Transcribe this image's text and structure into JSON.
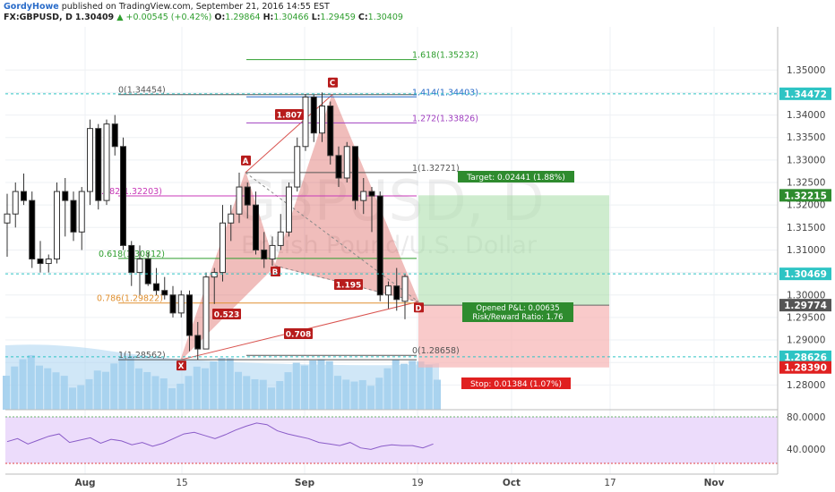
{
  "header": {
    "author": "GordyHowe",
    "published": "published on TradingView.com, September 21, 2016 14:55 EST",
    "symbol": "FX:GBPUSD, D",
    "last": "1.30409",
    "change": "+0.00545 (+0.42%)",
    "o_label": "O:",
    "o": "1.29864",
    "h_label": "H:",
    "h": "1.30466",
    "l_label": "L:",
    "l": "1.29459",
    "c_label": "C:",
    "c": "1.30409"
  },
  "watermark": {
    "ticker": "GBPUSD, D",
    "name": "British Pound/U.S. Dollar"
  },
  "colors": {
    "up_fill": "#ffffff",
    "down_fill": "#000000",
    "pattern": "#d9534f",
    "target_zone": "#a5dca5",
    "stop_zone": "#f6b3b3",
    "rsi_bg": "#ecdcfb",
    "volume": "#8cc3e8"
  },
  "chart_data": {
    "type": "candlestick",
    "yrange": [
      1.2745,
      1.3596
    ],
    "price_ticks": [
      "1.35000",
      "1.34500",
      "1.34000",
      "1.33500",
      "1.33000",
      "1.32500",
      "1.32000",
      "1.31500",
      "1.31000",
      "1.30500",
      "1.30000",
      "1.29500",
      "1.29000",
      "1.28500",
      "1.28000"
    ],
    "x_labels": [
      "Aug",
      "15",
      "Sep",
      "19",
      "Oct",
      "17",
      "Nov"
    ],
    "candles": [
      [
        1.316,
        1.3225,
        1.3085,
        1.318
      ],
      [
        1.318,
        1.325,
        1.315,
        1.323
      ],
      [
        1.323,
        1.327,
        1.32,
        1.321
      ],
      [
        1.321,
        1.323,
        1.306,
        1.308
      ],
      [
        1.308,
        1.312,
        1.305,
        1.307
      ],
      [
        1.307,
        1.309,
        1.305,
        1.308
      ],
      [
        1.308,
        1.325,
        1.307,
        1.323
      ],
      [
        1.323,
        1.326,
        1.313,
        1.321
      ],
      [
        1.321,
        1.323,
        1.312,
        1.314
      ],
      [
        1.314,
        1.324,
        1.31,
        1.323
      ],
      [
        1.323,
        1.339,
        1.32,
        1.337
      ],
      [
        1.337,
        1.338,
        1.319,
        1.321
      ],
      [
        1.321,
        1.339,
        1.32,
        1.338
      ],
      [
        1.338,
        1.34,
        1.331,
        1.333
      ],
      [
        1.333,
        1.335,
        1.31,
        1.311
      ],
      [
        1.311,
        1.312,
        1.302,
        1.305
      ],
      [
        1.305,
        1.311,
        1.3,
        1.308
      ],
      [
        1.308,
        1.3095,
        1.302,
        1.3025
      ],
      [
        1.3025,
        1.306,
        1.3,
        1.301
      ],
      [
        1.301,
        1.304,
        1.299,
        1.3
      ],
      [
        1.3,
        1.302,
        1.295,
        1.296
      ],
      [
        1.296,
        1.301,
        1.295,
        1.3
      ],
      [
        1.3,
        1.301,
        1.2875,
        1.291
      ],
      [
        1.291,
        1.294,
        1.2856,
        1.288
      ],
      [
        1.288,
        1.305,
        1.288,
        1.304
      ],
      [
        1.304,
        1.306,
        1.298,
        1.305
      ],
      [
        1.305,
        1.32,
        1.303,
        1.316
      ],
      [
        1.316,
        1.32,
        1.312,
        1.318
      ],
      [
        1.318,
        1.3272,
        1.316,
        1.324
      ],
      [
        1.324,
        1.325,
        1.317,
        1.32
      ],
      [
        1.32,
        1.323,
        1.309,
        1.31
      ],
      [
        1.31,
        1.314,
        1.306,
        1.308
      ],
      [
        1.308,
        1.313,
        1.3065,
        1.311
      ],
      [
        1.311,
        1.318,
        1.31,
        1.314
      ],
      [
        1.314,
        1.325,
        1.313,
        1.324
      ],
      [
        1.324,
        1.335,
        1.323,
        1.333
      ],
      [
        1.333,
        1.3447,
        1.332,
        1.344
      ],
      [
        1.344,
        1.3445,
        1.334,
        1.336
      ],
      [
        1.336,
        1.345,
        1.334,
        1.342
      ],
      [
        1.342,
        1.343,
        1.329,
        1.331
      ],
      [
        1.331,
        1.333,
        1.324,
        1.326
      ],
      [
        1.326,
        1.334,
        1.325,
        1.333
      ],
      [
        1.333,
        1.333,
        1.319,
        1.321
      ],
      [
        1.321,
        1.326,
        1.318,
        1.323
      ],
      [
        1.323,
        1.324,
        1.314,
        1.322
      ],
      [
        1.322,
        1.323,
        1.2986,
        1.3
      ],
      [
        1.3,
        1.303,
        1.297,
        1.302
      ],
      [
        1.302,
        1.306,
        1.2965,
        1.299
      ],
      [
        1.2986,
        1.3047,
        1.2946,
        1.3041
      ]
    ],
    "rsi_ticks": [
      "80.0000",
      "40.0000"
    ],
    "rsi": [
      48,
      52,
      45,
      50,
      55,
      58,
      47,
      50,
      53,
      46,
      51,
      49,
      44,
      47,
      42,
      46,
      52,
      58,
      60,
      56,
      52,
      57,
      63,
      68,
      72,
      70,
      62,
      58,
      55,
      52,
      47,
      45,
      43,
      47,
      40,
      38,
      42,
      44,
      43,
      43,
      40,
      45
    ],
    "price_tags": [
      {
        "label": "1.34472",
        "price": 1.34472,
        "color": "#2ec4c4"
      },
      {
        "label": "1.32215",
        "price": 1.32215,
        "color": "#2e8b2e"
      },
      {
        "label": "1.30469",
        "price": 1.30469,
        "color": "#2ec4c4"
      },
      {
        "label": "1.29774",
        "price": 1.29774,
        "color": "#555555"
      },
      {
        "label": "1.28626",
        "price": 1.28626,
        "color": "#2ec4c4"
      },
      {
        "label": "1.28390",
        "price": 1.2839,
        "color": "#e02020"
      }
    ],
    "fib_labels": [
      {
        "text": "1.618(1.35232)",
        "price": 1.35232,
        "color": "#2e9e2e"
      },
      {
        "text": "1.414(1.34403)",
        "price": 1.34403,
        "color": "#2a6cc9"
      },
      {
        "text": "0(1.34454)",
        "price": 1.34454,
        "color": "#555555"
      },
      {
        "text": "1.272(1.33826)",
        "price": 1.33826,
        "color": "#a040c0"
      },
      {
        "text": "1(1.32721)",
        "price": 1.32721,
        "color": "#555555"
      },
      {
        "text": "0.382(1.32203)",
        "price": 1.32203,
        "color": "#c83ab8"
      },
      {
        "text": "0.618(1.30812)",
        "price": 1.30812,
        "color": "#2e9e2e"
      },
      {
        "text": "0.786(1.29822)",
        "price": 1.29822,
        "color": "#e09030"
      },
      {
        "text": "1(1.28562)",
        "price": 1.28562,
        "color": "#555555"
      },
      {
        "text": "0(1.28658)",
        "price": 1.28658,
        "color": "#555555"
      }
    ],
    "pattern_points": [
      {
        "label": "X",
        "price": 1.28562
      },
      {
        "label": "A",
        "price": 1.32721
      },
      {
        "label": "B",
        "price": 1.3065
      },
      {
        "label": "C",
        "price": 1.34454
      },
      {
        "label": "D",
        "price": 1.2985
      }
    ],
    "ratios": [
      "1.807",
      "0.523",
      "0.708",
      "1.195"
    ],
    "target_label": "Target: 0.02441 (1.88%)",
    "stop_label": "Stop: 0.01384 (1.07%)",
    "pnl_label": "Opened P&L: 0.00635",
    "rr_label": "Risk/Reward Ratio: 1.76"
  }
}
